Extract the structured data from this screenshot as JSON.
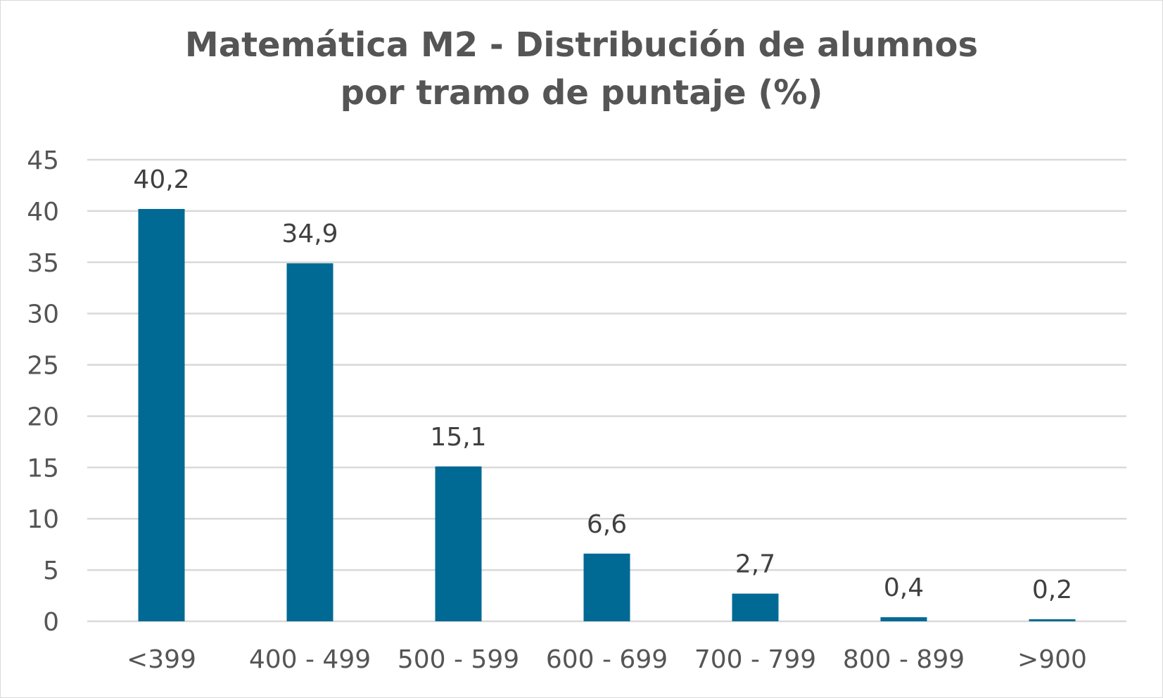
{
  "chart_data": {
    "type": "bar",
    "title_lines": [
      "Matemática M2 - Distribución de alumnos",
      "por tramo de puntaje (%)"
    ],
    "categories": [
      "<399",
      "400 - 499",
      "500 - 599",
      "600 - 699",
      "700 - 799",
      "800 - 899",
      ">900"
    ],
    "values": [
      40.2,
      34.9,
      15.1,
      6.6,
      2.7,
      0.4,
      0.2
    ],
    "data_labels": [
      "40,2",
      "34,9",
      "15,1",
      "6,6",
      "2,7",
      "0,4",
      "0,2"
    ],
    "ylim": [
      0,
      45
    ],
    "yticks": [
      "0",
      "5",
      "10",
      "15",
      "20",
      "25",
      "30",
      "35",
      "40",
      "45"
    ],
    "ytick_values": [
      0,
      5,
      10,
      15,
      20,
      25,
      30,
      35,
      40,
      45
    ],
    "grid": true,
    "legend": "none",
    "bar_color": "#006994",
    "grid_color": "#d9d9d9"
  }
}
